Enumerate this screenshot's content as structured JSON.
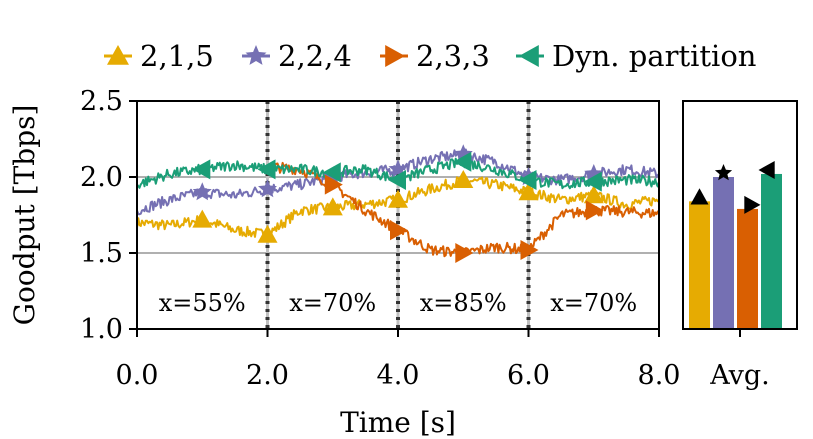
{
  "chart_data": {
    "type": "line",
    "xlabel": "Time [s]",
    "ylabel": "Goodput [Tbps]",
    "xlim": [
      0,
      8
    ],
    "ylim": [
      1.0,
      2.5
    ],
    "xticks": [
      "0.0",
      "2.0",
      "4.0",
      "6.0",
      "8.0"
    ],
    "yticks": [
      "1.0",
      "1.5",
      "2.0",
      "2.5"
    ],
    "hlines": [
      1.5,
      2.0
    ],
    "phase_boundaries": [
      2,
      4,
      6
    ],
    "regions": [
      {
        "label": "x=55%",
        "center": 1.0
      },
      {
        "label": "x=70%",
        "center": 3.0
      },
      {
        "label": "x=85%",
        "center": 5.0
      },
      {
        "label": "x=70%",
        "center": 7.0
      }
    ],
    "series": [
      {
        "name": "2,1,5",
        "color": "#e6ab02",
        "marker": "triangle-up",
        "x": [
          0.0,
          0.5,
          1.0,
          1.5,
          2.0,
          2.5,
          3.0,
          3.5,
          4.0,
          4.5,
          5.0,
          5.5,
          6.0,
          6.5,
          7.0,
          7.5,
          8.0
        ],
        "values": [
          1.7,
          1.68,
          1.72,
          1.65,
          1.62,
          1.78,
          1.8,
          1.82,
          1.85,
          1.92,
          1.98,
          1.95,
          1.9,
          1.85,
          1.88,
          1.82,
          1.85
        ]
      },
      {
        "name": "2,2,4",
        "color": "#7570b3",
        "marker": "star",
        "x": [
          0.0,
          0.5,
          1.0,
          1.5,
          2.0,
          2.5,
          3.0,
          3.5,
          4.0,
          4.5,
          5.0,
          5.5,
          6.0,
          6.5,
          7.0,
          7.5,
          8.0
        ],
        "values": [
          1.78,
          1.85,
          1.9,
          1.88,
          1.92,
          1.95,
          2.0,
          2.03,
          2.05,
          2.12,
          2.15,
          2.1,
          2.0,
          1.98,
          2.02,
          2.05,
          2.02
        ]
      },
      {
        "name": "2,3,3",
        "color": "#d95f02",
        "marker": "triangle-right",
        "x": [
          2.0,
          2.5,
          3.0,
          3.5,
          4.0,
          4.5,
          5.0,
          5.5,
          6.0,
          6.5,
          7.0,
          7.5,
          8.0
        ],
        "values": [
          2.07,
          2.05,
          1.95,
          1.78,
          1.65,
          1.52,
          1.5,
          1.54,
          1.52,
          1.75,
          1.78,
          1.77,
          1.76
        ]
      },
      {
        "name": "Dyn. partition",
        "color": "#1b9e77",
        "marker": "triangle-left",
        "x": [
          0.0,
          0.5,
          1.0,
          1.5,
          2.0,
          2.5,
          3.0,
          3.5,
          4.0,
          4.5,
          5.0,
          5.5,
          6.0,
          6.5,
          7.0,
          7.5,
          8.0
        ],
        "values": [
          1.95,
          2.02,
          2.05,
          2.08,
          2.05,
          2.05,
          2.03,
          2.05,
          1.98,
          2.05,
          2.1,
          2.05,
          1.98,
          1.95,
          1.97,
          1.98,
          1.97
        ]
      }
    ],
    "avg_panel": {
      "label": "Avg.",
      "bars": [
        {
          "name": "2,1,5",
          "value": 1.84
        },
        {
          "name": "2,2,4",
          "value": 2.0
        },
        {
          "name": "2,3,3",
          "value": 1.79
        },
        {
          "name": "Dyn. partition",
          "value": 2.02
        }
      ]
    },
    "legend": {
      "position": "top"
    }
  }
}
